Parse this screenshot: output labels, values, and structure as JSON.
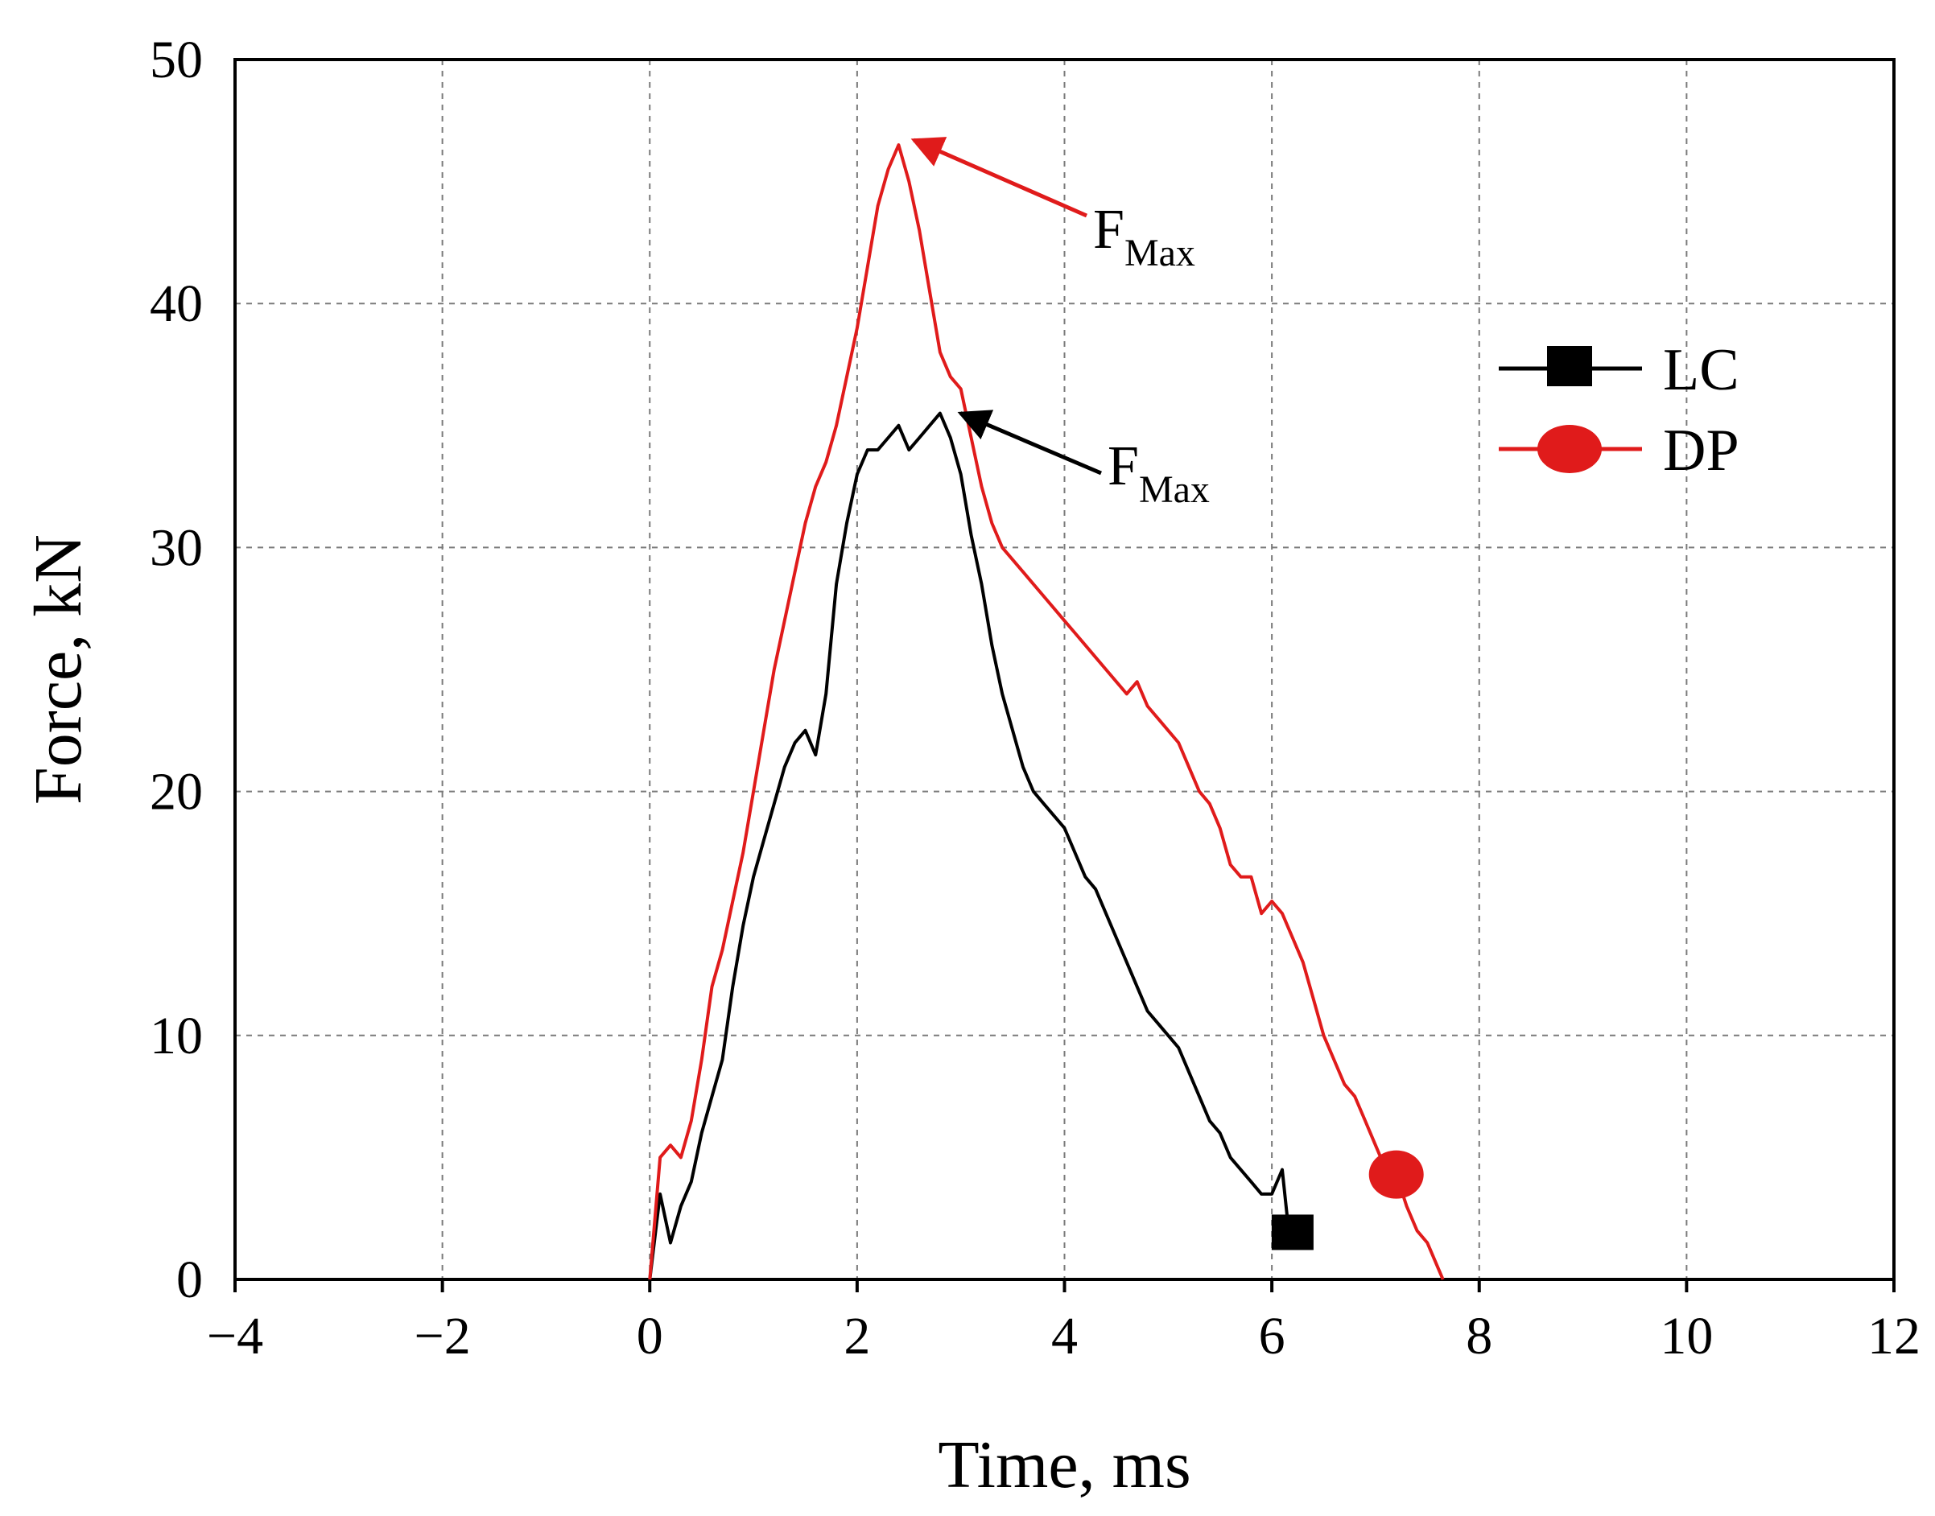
{
  "chart_data": {
    "type": "line",
    "xlabel": "Time, ms",
    "ylabel": "Force, kN",
    "xlim": [
      -4,
      12
    ],
    "ylim": [
      0,
      50
    ],
    "xticks": [
      -4,
      -2,
      0,
      2,
      4,
      6,
      8,
      10,
      12
    ],
    "yticks": [
      0,
      10,
      20,
      30,
      40,
      50
    ],
    "grid": true,
    "legend_position": "top-right",
    "series": [
      {
        "name": "LC",
        "marker": "square",
        "color": "#000000",
        "marker_point": {
          "x": 6.2,
          "y": 1.8
        },
        "x": [
          0,
          0.1,
          0.2,
          0.3,
          0.4,
          0.5,
          0.6,
          0.7,
          0.8,
          0.9,
          1.0,
          1.1,
          1.2,
          1.3,
          1.4,
          1.5,
          1.6,
          1.7,
          1.8,
          1.9,
          2.0,
          2.1,
          2.2,
          2.3,
          2.4,
          2.5,
          2.6,
          2.7,
          2.8,
          2.9,
          3.0,
          3.1,
          3.2,
          3.3,
          3.4,
          3.5,
          3.6,
          3.7,
          3.8,
          3.9,
          4.0,
          4.1,
          4.2,
          4.3,
          4.4,
          4.5,
          4.6,
          4.7,
          4.8,
          4.9,
          5.0,
          5.1,
          5.2,
          5.3,
          5.4,
          5.5,
          5.6,
          5.7,
          5.8,
          5.9,
          6.0,
          6.1,
          6.15,
          6.2
        ],
        "y": [
          0,
          3.5,
          1.5,
          3.0,
          4.0,
          6.0,
          7.5,
          9.0,
          12.0,
          14.5,
          16.5,
          18.0,
          19.5,
          21.0,
          22.0,
          22.5,
          21.5,
          24.0,
          28.5,
          31.0,
          33.0,
          34.0,
          34.0,
          34.5,
          35.0,
          34.0,
          34.5,
          35.0,
          35.5,
          34.5,
          33.0,
          30.5,
          28.5,
          26.0,
          24.0,
          22.5,
          21.0,
          20.0,
          19.5,
          19.0,
          18.5,
          17.5,
          16.5,
          16.0,
          15.0,
          14.0,
          13.0,
          12.0,
          11.0,
          10.5,
          10.0,
          9.5,
          8.5,
          7.5,
          6.5,
          6.0,
          5.0,
          4.5,
          4.0,
          3.5,
          3.5,
          4.5,
          2.5,
          1.8
        ]
      },
      {
        "name": "DP",
        "marker": "circle",
        "color": "#e01b1b",
        "marker_point": {
          "x": 7.2,
          "y": 4.3
        },
        "x": [
          0,
          0.1,
          0.2,
          0.3,
          0.4,
          0.5,
          0.6,
          0.7,
          0.8,
          0.9,
          1.0,
          1.1,
          1.2,
          1.3,
          1.4,
          1.5,
          1.6,
          1.7,
          1.8,
          1.9,
          2.0,
          2.1,
          2.2,
          2.3,
          2.4,
          2.5,
          2.6,
          2.7,
          2.8,
          2.9,
          3.0,
          3.1,
          3.2,
          3.3,
          3.4,
          3.5,
          3.6,
          3.7,
          3.8,
          3.9,
          4.0,
          4.1,
          4.2,
          4.3,
          4.4,
          4.5,
          4.6,
          4.7,
          4.8,
          4.9,
          5.0,
          5.1,
          5.2,
          5.3,
          5.4,
          5.5,
          5.6,
          5.7,
          5.8,
          5.9,
          6.0,
          6.1,
          6.2,
          6.3,
          6.4,
          6.5,
          6.6,
          6.7,
          6.8,
          6.9,
          7.0,
          7.1,
          7.2,
          7.3,
          7.4,
          7.5,
          7.6,
          7.65
        ],
        "y": [
          0,
          5.0,
          5.5,
          5.0,
          6.5,
          9.0,
          12.0,
          13.5,
          15.5,
          17.5,
          20.0,
          22.5,
          25.0,
          27.0,
          29.0,
          31.0,
          32.5,
          33.5,
          35.0,
          37.0,
          39.0,
          41.5,
          44.0,
          45.5,
          46.5,
          45.0,
          43.0,
          40.5,
          38.0,
          37.0,
          36.5,
          34.5,
          32.5,
          31.0,
          30.0,
          29.5,
          29.0,
          28.5,
          28.0,
          27.5,
          27.0,
          26.5,
          26.0,
          25.5,
          25.0,
          24.5,
          24.0,
          24.5,
          23.5,
          23.0,
          22.5,
          22.0,
          21.0,
          20.0,
          19.5,
          18.5,
          17.0,
          16.5,
          16.5,
          15.0,
          15.5,
          15.0,
          14.0,
          13.0,
          11.5,
          10.0,
          9.0,
          8.0,
          7.5,
          6.5,
          5.5,
          4.5,
          4.3,
          3.0,
          2.0,
          1.5,
          0.5,
          0
        ]
      }
    ],
    "annotations": [
      {
        "name": "dp-fmax",
        "text": "F",
        "subscript": "Max",
        "x": 2.5,
        "y": 46.8,
        "color": "#e01b1b"
      },
      {
        "name": "lc-fmax",
        "text": "F",
        "subscript": "Max",
        "x": 2.95,
        "y": 35.6,
        "color": "#000000"
      }
    ]
  }
}
